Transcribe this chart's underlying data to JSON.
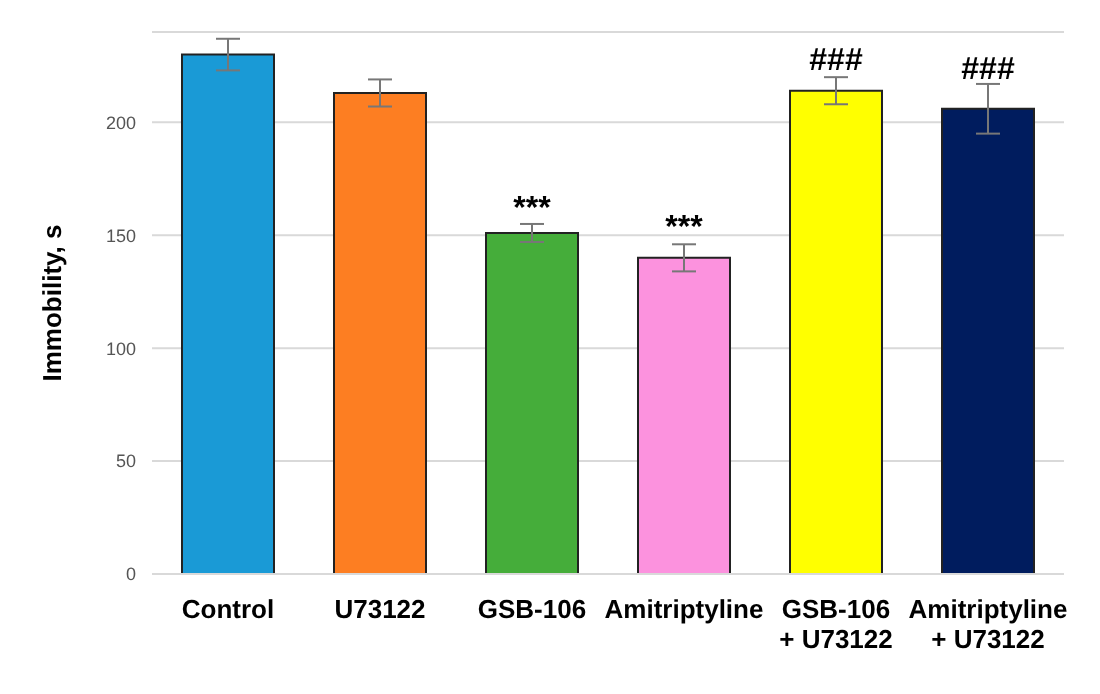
{
  "chart_data": {
    "type": "bar",
    "ylabel": "Immobility, s",
    "categories": [
      "Control",
      "U73122",
      "GSB-106",
      "Amitriptyline",
      "GSB-106\n+ U73122",
      "Amitriptyline\n+ U73122"
    ],
    "values": [
      230,
      213,
      151,
      140,
      214,
      206
    ],
    "errors": [
      7,
      6,
      4,
      6,
      6,
      11
    ],
    "colors": [
      "#1a9ad6",
      "#fd7e22",
      "#45ad3a",
      "#fc92de",
      "#ffff00",
      "#001c5e"
    ],
    "ylim": [
      0,
      240
    ],
    "yticks": [
      0,
      50,
      100,
      150,
      200
    ],
    "grid": "y",
    "annotations": [
      {
        "text": "***",
        "x": "GSB-106",
        "y": 155
      },
      {
        "text": "***",
        "x": "Amitriptyline",
        "y": 146.5
      },
      {
        "text": "###",
        "x": "GSB-106\n+ U73122",
        "y": 220.5
      },
      {
        "text": "###",
        "x": "Amitriptyline\n+ U73122",
        "y": 216.5
      }
    ]
  }
}
